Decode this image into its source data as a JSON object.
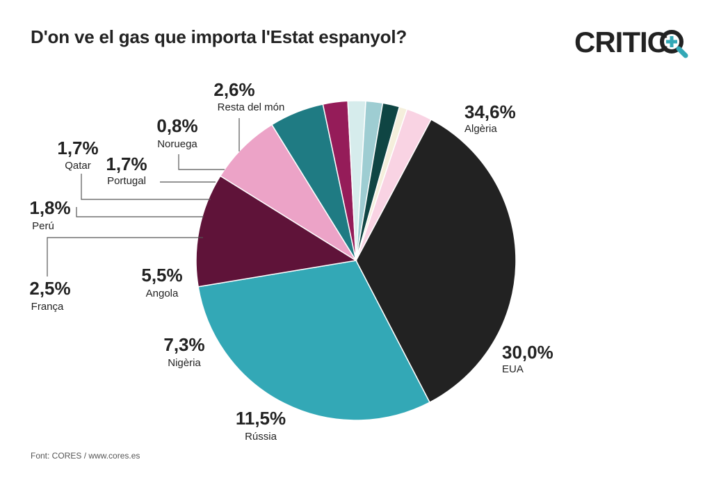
{
  "title": "D'on ve el gas que importa l'Estat espanyol?",
  "logo": {
    "text": "CRITIC",
    "accent_color": "#33a8b6",
    "icon": "magnifier-plus-icon"
  },
  "source": "Font: CORES / www.cores.es",
  "chart_data": {
    "type": "pie",
    "title": "D'on ve el gas que importa l'Estat espanyol?",
    "unit": "%",
    "slices": [
      {
        "label": "Algèria",
        "value_text": "34,6%",
        "value": 34.6,
        "color": "#222222"
      },
      {
        "label": "EUA",
        "value_text": "30,0%",
        "value": 30.0,
        "color": "#33a8b6"
      },
      {
        "label": "Rússia",
        "value_text": "11,5%",
        "value": 11.5,
        "color": "#5f1339"
      },
      {
        "label": "Nigèria",
        "value_text": "7,3%",
        "value": 7.3,
        "color": "#eca3c7"
      },
      {
        "label": "Angola",
        "value_text": "5,5%",
        "value": 5.5,
        "color": "#1f7b83"
      },
      {
        "label": "França",
        "value_text": "2,5%",
        "value": 2.5,
        "color": "#951c59"
      },
      {
        "label": "Perú",
        "value_text": "1,8%",
        "value": 1.8,
        "color": "#d6ecec"
      },
      {
        "label": "Qatar",
        "value_text": "1,7%",
        "value": 1.7,
        "color": "#9ecdd2"
      },
      {
        "label": "Portugal",
        "value_text": "1,7%",
        "value": 1.7,
        "color": "#0f4543"
      },
      {
        "label": "Noruega",
        "value_text": "0,8%",
        "value": 0.8,
        "color": "#f5efdc"
      },
      {
        "label": "Resta del món",
        "value_text": "2,6%",
        "value": 2.6,
        "color": "#f9d3e3"
      }
    ]
  }
}
